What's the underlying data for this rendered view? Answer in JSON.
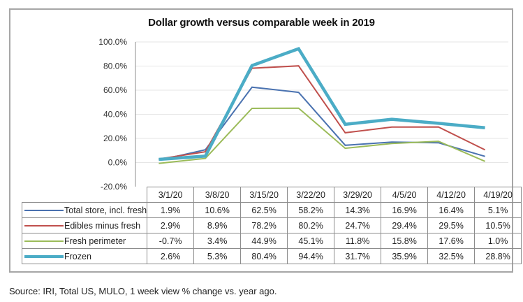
{
  "chart_data": {
    "type": "line",
    "title": "Dollar growth versus comparable week in 2019",
    "xlabel": "",
    "ylabel": "",
    "categories": [
      "3/1/20",
      "3/8/20",
      "3/15/20",
      "3/22/20",
      "3/29/20",
      "4/5/20",
      "4/12/20",
      "4/19/20"
    ],
    "ylim": [
      -20,
      100
    ],
    "yticks": [
      100,
      80,
      60,
      40,
      20,
      0,
      -20
    ],
    "ytick_labels": [
      "100.0%",
      "80.0%",
      "60.0%",
      "40.0%",
      "20.0%",
      "0.0%",
      "-20.0%"
    ],
    "grid": true,
    "legend": "data-table-left",
    "series": [
      {
        "name": "Total store, incl. fresh",
        "color": "#4a72b0",
        "weight": "thin",
        "values": [
          1.9,
          10.6,
          62.5,
          58.2,
          14.3,
          16.9,
          16.4,
          5.1
        ],
        "labels": [
          "1.9%",
          "10.6%",
          "62.5%",
          "58.2%",
          "14.3%",
          "16.9%",
          "16.4%",
          "5.1%"
        ]
      },
      {
        "name": "Edibles minus fresh",
        "color": "#c0504d",
        "weight": "thin",
        "values": [
          2.9,
          8.9,
          78.2,
          80.2,
          24.7,
          29.4,
          29.5,
          10.5
        ],
        "labels": [
          "2.9%",
          "8.9%",
          "78.2%",
          "80.2%",
          "24.7%",
          "29.4%",
          "29.5%",
          "10.5%"
        ]
      },
      {
        "name": "Fresh perimeter",
        "color": "#9bbb59",
        "weight": "thin",
        "values": [
          -0.7,
          3.4,
          44.9,
          45.1,
          11.8,
          15.8,
          17.6,
          1.0
        ],
        "labels": [
          "-0.7%",
          "3.4%",
          "44.9%",
          "45.1%",
          "11.8%",
          "15.8%",
          "17.6%",
          "1.0%"
        ]
      },
      {
        "name": "Frozen",
        "color": "#4bacc6",
        "weight": "thick",
        "values": [
          2.6,
          5.3,
          80.4,
          94.4,
          31.7,
          35.9,
          32.5,
          28.8
        ],
        "labels": [
          "2.6%",
          "5.3%",
          "80.4%",
          "94.4%",
          "31.7%",
          "35.9%",
          "32.5%",
          "28.8%"
        ]
      }
    ]
  },
  "source_note": "Source: IRI, Total US, MULO, 1 week view % change vs. year ago."
}
